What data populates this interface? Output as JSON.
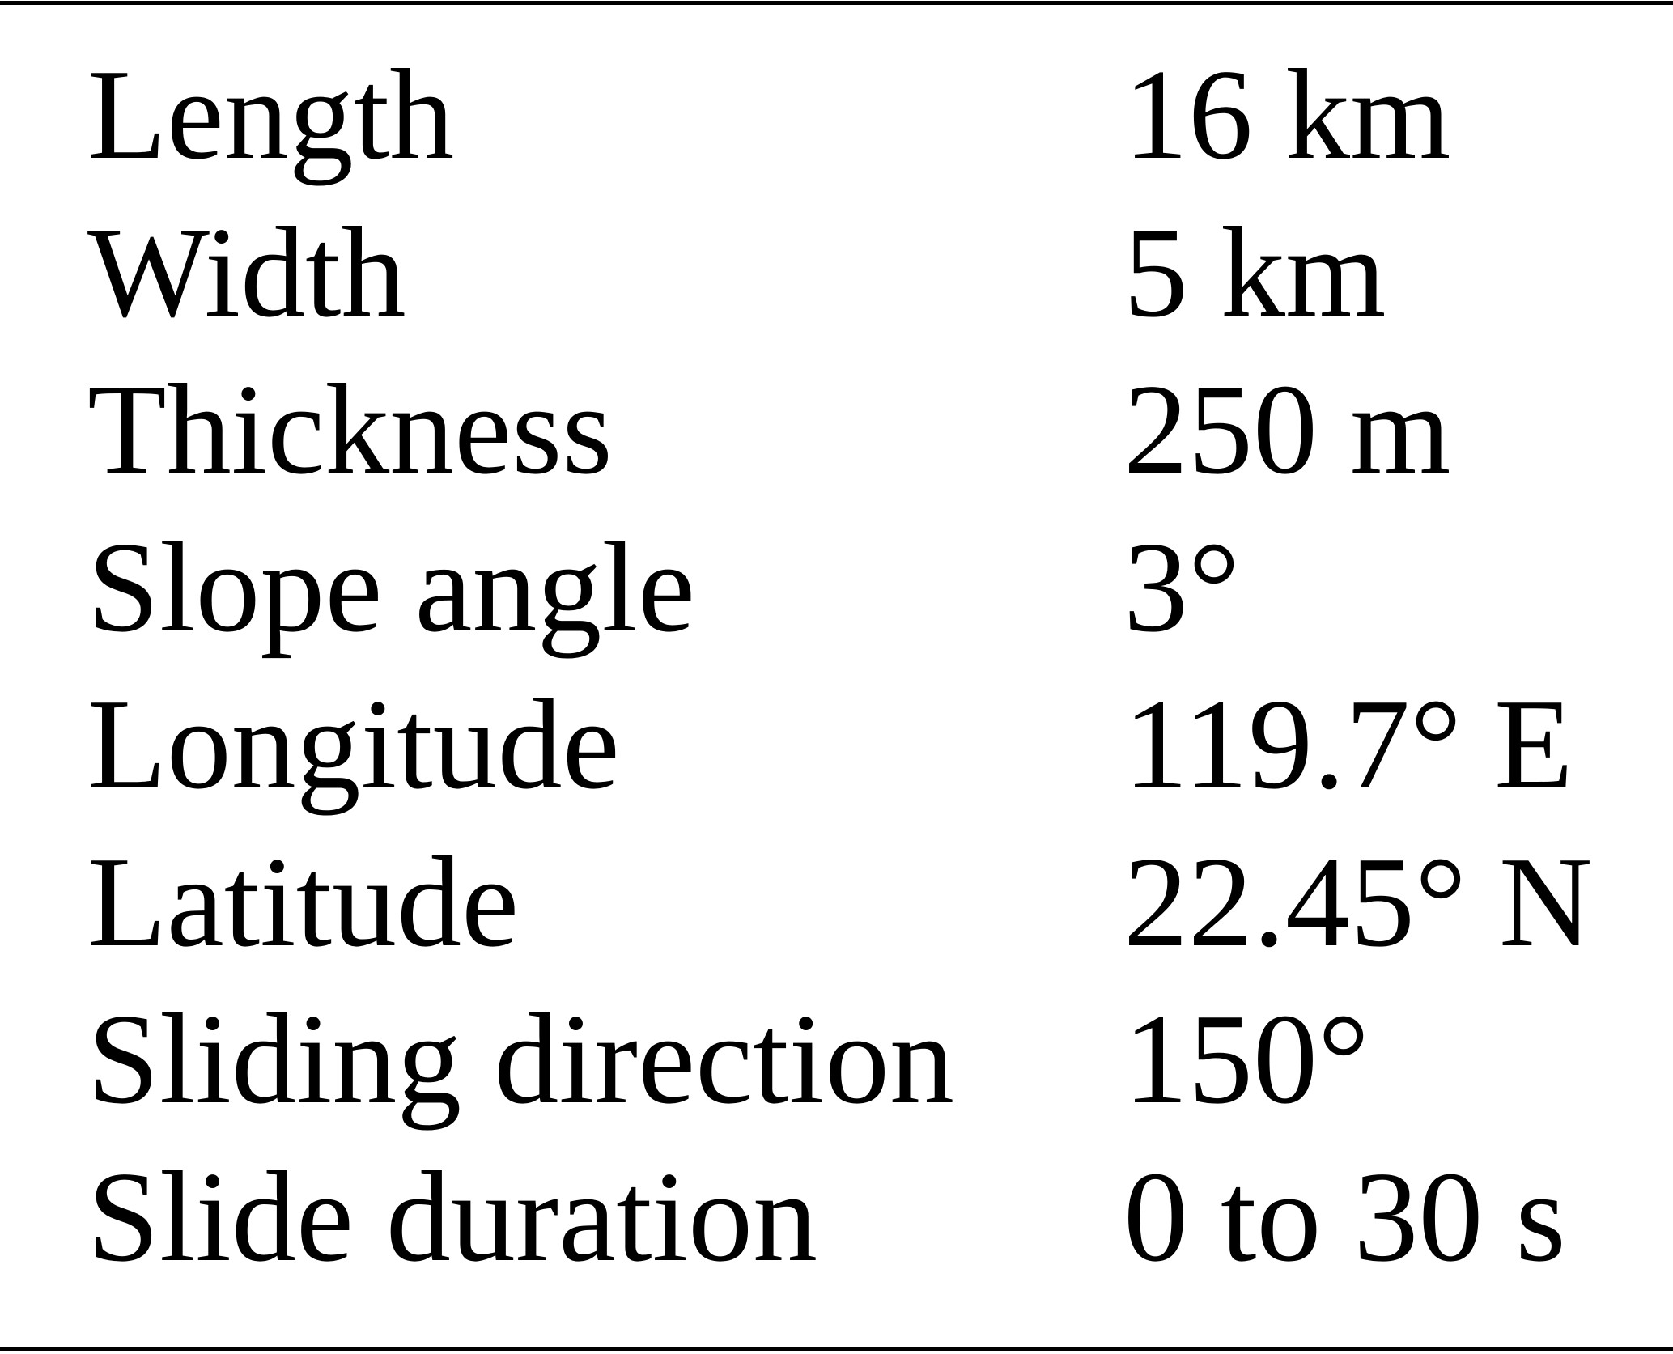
{
  "table": {
    "rows": [
      {
        "parameter": "Length",
        "value": "16 km"
      },
      {
        "parameter": "Width",
        "value": "5 km"
      },
      {
        "parameter": "Thickness",
        "value": "250 m"
      },
      {
        "parameter": "Slope angle",
        "value": "3°"
      },
      {
        "parameter": "Longitude",
        "value": "119.7° E"
      },
      {
        "parameter": "Latitude",
        "value": "22.45° N"
      },
      {
        "parameter": "Sliding direction",
        "value": "150°"
      },
      {
        "parameter": "Slide duration",
        "value": "0 to 30 s"
      }
    ]
  }
}
